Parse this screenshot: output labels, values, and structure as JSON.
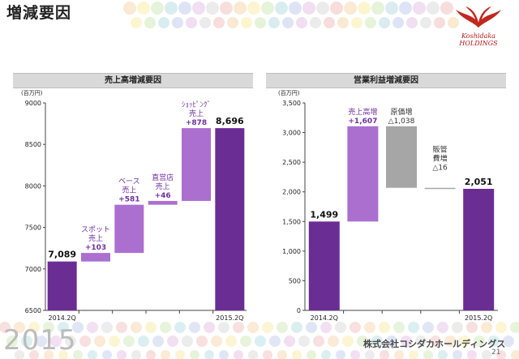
{
  "page": {
    "title": "増減要因",
    "company": "株式会社コシダカホールディングス",
    "page_number": "21",
    "year_mark": "2015",
    "logo_line1": "Koshidaka",
    "logo_line2": "HOLDINGS"
  },
  "colors": {
    "base_bar": "#6a2d94",
    "step_bar": "#ab6fd0",
    "cost_bar": "#a6a6a6",
    "label_purple": "#7030a0",
    "logo_red": "#c0281e"
  },
  "chart_data": [
    {
      "type": "waterfall",
      "title": "売上高増減要因",
      "unit": "(百万円)",
      "ylim": [
        6500,
        9000
      ],
      "yticks": [
        "6500",
        "7000",
        "7500",
        "8000",
        "8500",
        "9000"
      ],
      "categories": [
        "2014.2Q",
        "",
        "",
        "",
        "",
        "2015.2Q"
      ],
      "bars": [
        {
          "kind": "total",
          "start": 0,
          "end": 7089,
          "label": "7,089"
        },
        {
          "kind": "increase",
          "start": 7089,
          "end": 7192,
          "label": [
            "スポット",
            "売上",
            "+103"
          ]
        },
        {
          "kind": "increase",
          "start": 7192,
          "end": 7773,
          "label": [
            "ベース",
            "売上",
            "+581"
          ]
        },
        {
          "kind": "increase",
          "start": 7773,
          "end": 7819,
          "label": [
            "直営店",
            "売上",
            "+46"
          ]
        },
        {
          "kind": "increase",
          "start": 7819,
          "end": 8696,
          "label": [
            "ｼｮｯﾋﾟﾝｸﾞ",
            "売上",
            "+878"
          ]
        },
        {
          "kind": "total",
          "start": 0,
          "end": 8696,
          "label": "8,696"
        }
      ]
    },
    {
      "type": "waterfall",
      "title": "営業利益増減要因",
      "unit": "(百万円)",
      "ylim": [
        0,
        3500
      ],
      "yticks": [
        "0",
        "500",
        "1,000",
        "1,500",
        "2,000",
        "2,500",
        "3,000",
        "3,500"
      ],
      "categories": [
        "2014.2Q",
        "",
        "",
        "",
        "2015.2Q"
      ],
      "bars": [
        {
          "kind": "total",
          "start": 0,
          "end": 1499,
          "label": "1,499"
        },
        {
          "kind": "increase",
          "start": 1499,
          "end": 3106,
          "label": [
            "売上高増",
            "+1,607"
          ]
        },
        {
          "kind": "decrease",
          "start": 3106,
          "end": 2068,
          "label": [
            "原価増",
            "△1,038"
          ]
        },
        {
          "kind": "decrease",
          "start": 2068,
          "end": 2051,
          "label": [
            "販管",
            "費増",
            "△16"
          ]
        },
        {
          "kind": "total",
          "start": 0,
          "end": 2051,
          "label": "2,051"
        }
      ]
    }
  ]
}
